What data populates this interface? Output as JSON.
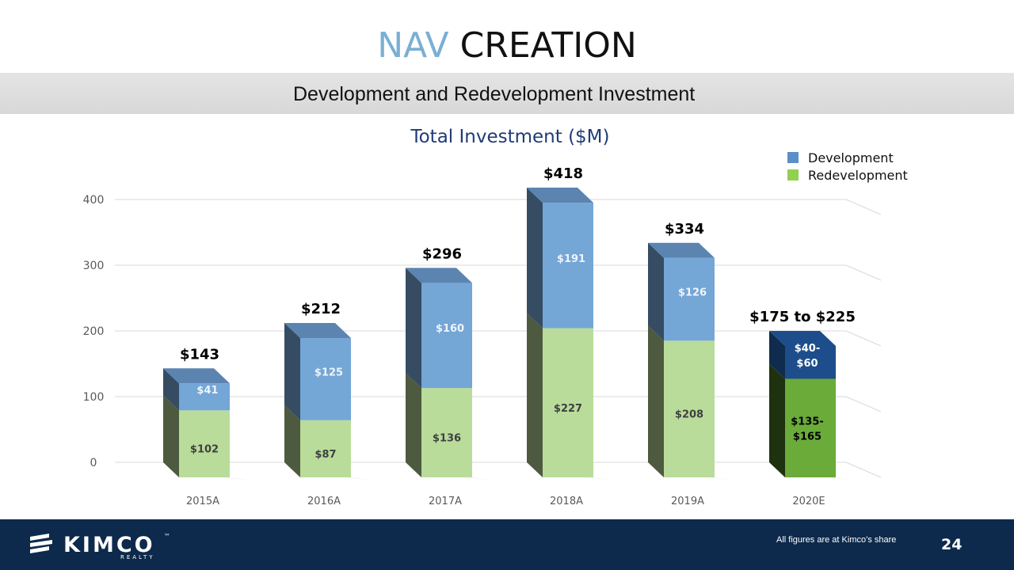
{
  "header": {
    "title_accent": "NAV",
    "title_rest": "CREATION",
    "subtitle": "Development and Redevelopment Investment"
  },
  "colors": {
    "accent": "#7aafd4",
    "development": "#5b8fc7",
    "redevelopment": "#92d050",
    "footer": "#0d2a4c"
  },
  "chart_data": {
    "type": "bar",
    "stacked": true,
    "three_d": true,
    "title": "Total Investment ($M)",
    "categories": [
      "2015A",
      "2016A",
      "2017A",
      "2018A",
      "2019A",
      "2020E"
    ],
    "series": [
      {
        "name": "Redevelopment",
        "values": [
          102,
          87,
          136,
          227,
          208,
          150
        ],
        "labels": [
          "$102",
          "$87",
          "$136",
          "$227",
          "$208",
          "$135-\n$165"
        ]
      },
      {
        "name": "Development",
        "values": [
          41,
          125,
          160,
          191,
          126,
          50
        ],
        "labels": [
          "$41",
          "$125",
          "$160",
          "$191",
          "$126",
          "$40-\n$60"
        ]
      }
    ],
    "totals": [
      "$143",
      "$212",
      "$296",
      "$418",
      "$334",
      "$175 to $225"
    ],
    "y_ticks": [
      "0",
      "100",
      "200",
      "300",
      "400"
    ],
    "ylim": [
      0,
      400
    ],
    "grid": true,
    "legend_position": "top-right",
    "highlight_last": true
  },
  "footer": {
    "brand": "KIMCO",
    "brand_sub": "REALTY",
    "trademark": "™",
    "note": "All figures are at Kimco’s share",
    "page_number": "24"
  }
}
